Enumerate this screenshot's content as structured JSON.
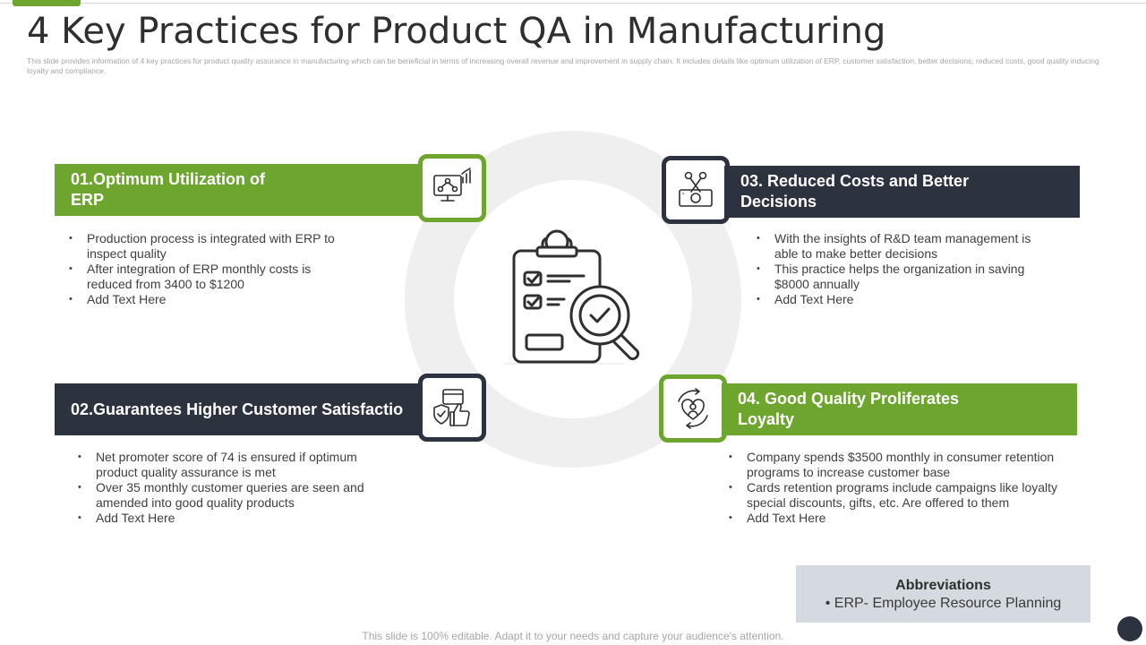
{
  "slide": {
    "title": "4 Key Practices for Product QA in Manufacturing",
    "subtitle": "This slide provides information of 4 key practices for product quality assurance in manufacturing which  can be beneficial in terms of increasing overall revenue and improvement in supply chain. It includes details like optimum  utilization of ERP, customer satisfaction, better decisions, reduced costs, good quality inducing loyalty and compliance.",
    "footer": "This slide is 100% editable. Adapt it to your needs and capture your audience's attention."
  },
  "practices": [
    {
      "heading_line1": " 01.Optimum Utilization of",
      "heading_line2": "ERP",
      "points": [
        "Production process is integrated with ERP to inspect quality",
        "After integration of ERP monthly costs is reduced from 3400 to $1200",
        "Add Text Here"
      ],
      "icon": "erp-network-monitor-icon"
    },
    {
      "heading_line1": "02.Guarantees Higher Customer Satisfactio",
      "points": [
        "Net promoter score of 74 is ensured if optimum product quality assurance is met",
        "Over 35 monthly customer queries are seen and amended into good quality products",
        "Add Text Here"
      ],
      "icon": "customer-satisfaction-thumbs-up-icon"
    },
    {
      "heading_line1": "03. Reduced Costs and Better",
      "heading_line2": "Decisions",
      "points": [
        "With the insights of R&D team management is able to make better decisions",
        "This practice helps the organization in saving $8000 annually",
        "Add Text Here"
      ],
      "icon": "cut-costs-money-scissors-icon"
    },
    {
      "heading_line1": "04. Good Quality Proliferates",
      "heading_line2": "Loyalty",
      "points": [
        "Company spends $3500 monthly in consumer retention programs to increase customer base",
        "Cards retention programs include campaigns like loyalty special discounts, gifts, etc. Are offered to them",
        "Add Text Here"
      ],
      "icon": "loyalty-heart-cycle-icon"
    }
  ],
  "abbreviations": {
    "title": "Abbreviations",
    "item": "•   ERP- Employee Resource Planning"
  },
  "colors": {
    "green": "#6ea52f",
    "dark": "#2c333f",
    "ring": "#efefef"
  }
}
